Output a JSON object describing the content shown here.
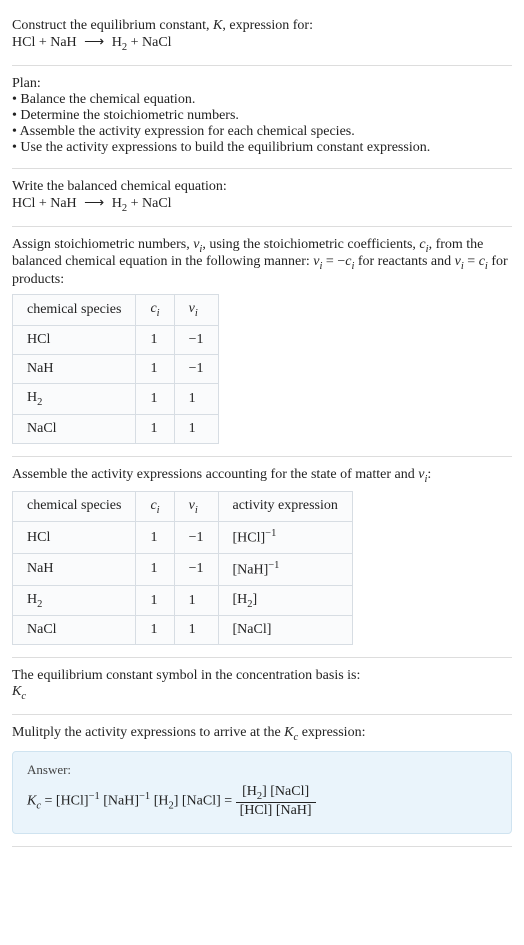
{
  "intro": {
    "line1": "Construct the equilibrium constant, ",
    "K": "K",
    "line1b": ", expression for:",
    "equation_lhs": "HCl + NaH",
    "arrow": "⟶",
    "equation_rhs_h2": "H",
    "equation_rhs_h2_sub": "2",
    "equation_rhs_rest": " + NaCl"
  },
  "plan": {
    "title": "Plan:",
    "b1": "• Balance the chemical equation.",
    "b2": "• Determine the stoichiometric numbers.",
    "b3": "• Assemble the activity expression for each chemical species.",
    "b4": "• Use the activity expressions to build the equilibrium constant expression."
  },
  "balanced": {
    "title": "Write the balanced chemical equation:",
    "lhs": "HCl + NaH",
    "arrow": "⟶",
    "rhs_h2": "H",
    "rhs_h2_sub": "2",
    "rhs_rest": " + NaCl"
  },
  "stoich_text": {
    "p1a": "Assign stoichiometric numbers, ",
    "nu_i": "ν",
    "sub_i": "i",
    "p1b": ", using the stoichiometric coefficients, ",
    "c_i": "c",
    "p1c": ", from the balanced chemical equation in the following manner: ",
    "eq1a": "ν",
    "eq1b": " = −",
    "eq1c": "c",
    "p1d": " for reactants and ",
    "eq2a": "ν",
    "eq2b": " = ",
    "eq2c": "c",
    "p1e": " for products:"
  },
  "table1": {
    "h1": "chemical species",
    "h2": "c",
    "h2_sub": "i",
    "h3": "ν",
    "h3_sub": "i",
    "rows": [
      {
        "sp": "HCl",
        "c": "1",
        "v": "−1"
      },
      {
        "sp": "NaH",
        "c": "1",
        "v": "−1"
      },
      {
        "sp": "H",
        "sp_sub": "2",
        "c": "1",
        "v": "1"
      },
      {
        "sp": "NaCl",
        "c": "1",
        "v": "1"
      }
    ]
  },
  "assemble": {
    "p1a": "Assemble the activity expressions accounting for the state of matter and ",
    "nu": "ν",
    "sub_i": "i",
    "p1b": ":"
  },
  "table2": {
    "h1": "chemical species",
    "h2": "c",
    "h2_sub": "i",
    "h3": "ν",
    "h3_sub": "i",
    "h4": "activity expression",
    "rows": [
      {
        "sp": "HCl",
        "c": "1",
        "v": "−1",
        "act": "[HCl]",
        "act_sup": "−1"
      },
      {
        "sp": "NaH",
        "c": "1",
        "v": "−1",
        "act": "[NaH]",
        "act_sup": "−1"
      },
      {
        "sp": "H",
        "sp_sub": "2",
        "c": "1",
        "v": "1",
        "act": "[H",
        "act_sub": "2",
        "act_close": "]"
      },
      {
        "sp": "NaCl",
        "c": "1",
        "v": "1",
        "act": "[NaCl]"
      }
    ]
  },
  "symbol": {
    "line": "The equilibrium constant symbol in the concentration basis is:",
    "K": "K",
    "sub_c": "c"
  },
  "multiply": {
    "line1a": "Mulitply the activity expressions to arrive at the ",
    "K": "K",
    "sub_c": "c",
    "line1b": " expression:"
  },
  "answer": {
    "label": "Answer:",
    "K": "K",
    "sub_c": "c",
    "eq": " = [HCl]",
    "sup_m1a": "−1",
    "mid1": " [NaH]",
    "sup_m1b": "−1",
    "mid2": " [H",
    "h2_sub": "2",
    "mid3": "] [NaCl] = ",
    "num1": "[H",
    "num_sub": "2",
    "num2": "] [NaCl]",
    "den": "[HCl] [NaH]"
  }
}
